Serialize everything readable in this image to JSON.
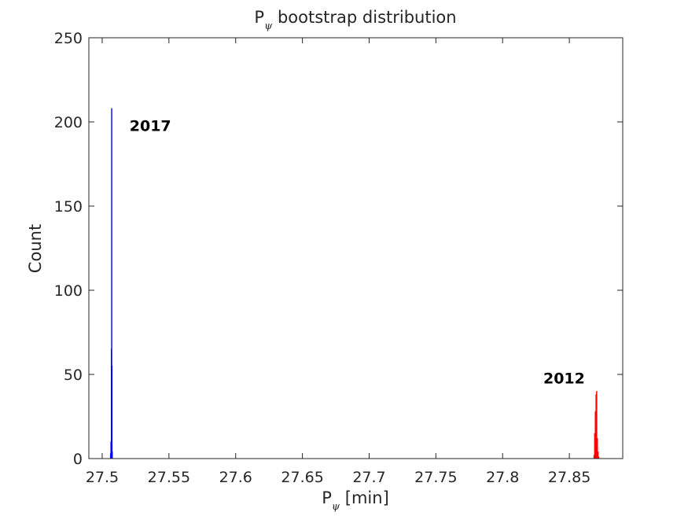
{
  "chart_data": {
    "type": "bar",
    "title_main": "P",
    "title_sub": "ψ",
    "title_rest": " bootstrap distribution",
    "xlabel_main": "P",
    "xlabel_sub": "ψ",
    "xlabel_rest": " [min]",
    "ylabel": "Count",
    "xlim": [
      27.49,
      27.89
    ],
    "ylim": [
      0,
      250
    ],
    "xticks": [
      27.5,
      27.55,
      27.6,
      27.65,
      27.7,
      27.75,
      27.8,
      27.85
    ],
    "xtick_labels": [
      "27.5",
      "27.55",
      "27.6",
      "27.65",
      "27.7",
      "27.75",
      "27.8",
      "27.85"
    ],
    "yticks": [
      0,
      50,
      100,
      150,
      200,
      250
    ],
    "ytick_labels": [
      "0",
      "50",
      "100",
      "150",
      "200",
      "250"
    ],
    "grid": false,
    "series": [
      {
        "color": "#0000ff",
        "x": [
          27.5063,
          27.5066,
          27.5069,
          27.5071,
          27.5073,
          27.5075
        ],
        "values": [
          3,
          10,
          65,
          208,
          55,
          4
        ]
      },
      {
        "color": "#ff0000",
        "x": [
          27.8685,
          27.869,
          27.8695,
          27.87,
          27.8705,
          27.871,
          27.8715,
          27.872
        ],
        "values": [
          2,
          15,
          28,
          38,
          40,
          12,
          4,
          1
        ]
      }
    ],
    "annotations": [
      {
        "text": "2017",
        "x": 27.5205,
        "y": 198
      },
      {
        "text": "2012",
        "x": 27.8305,
        "y": 48
      }
    ],
    "annotation_colors": {
      "axis": "#262626",
      "text": "#000000"
    }
  }
}
